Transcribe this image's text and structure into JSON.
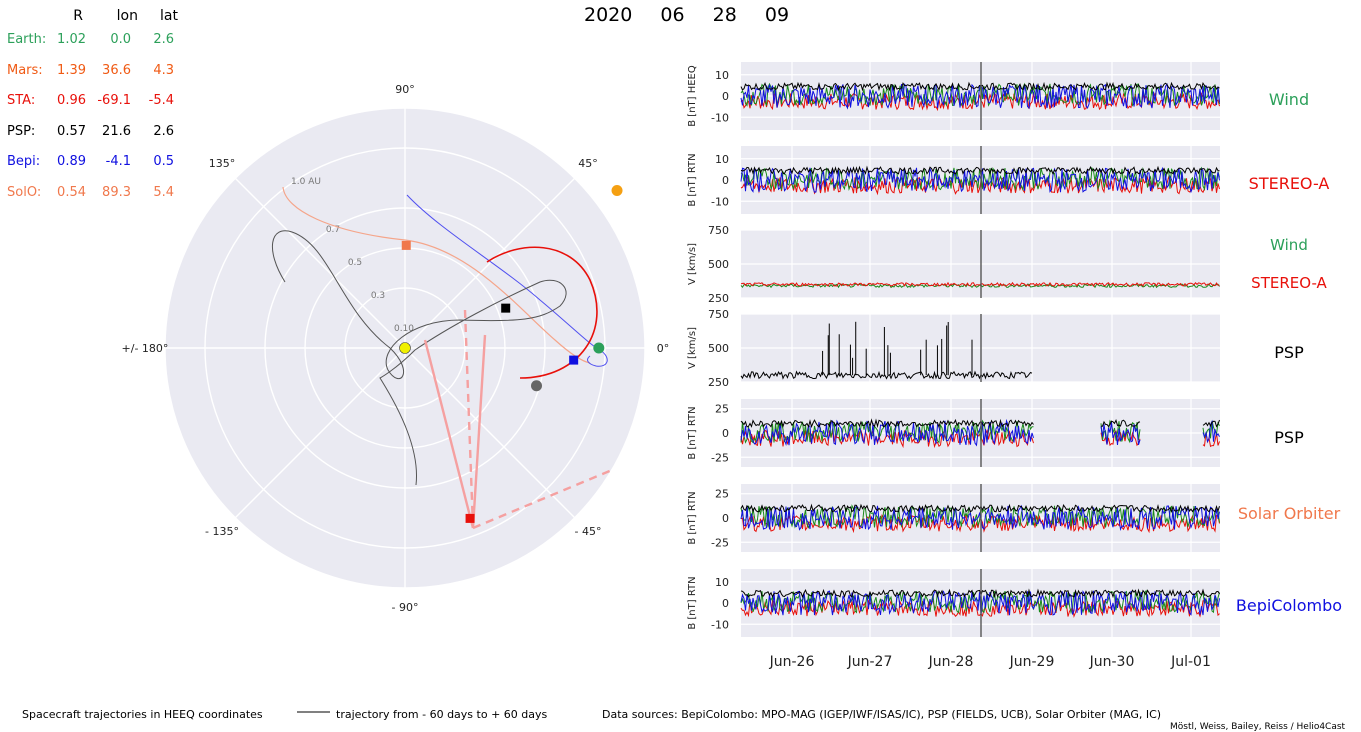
{
  "header": {
    "datetime": [
      "2020",
      "06",
      "28",
      "09"
    ]
  },
  "positions_table": {
    "columns": [
      "R",
      "lon",
      "lat"
    ],
    "rows": [
      {
        "name": "Earth:",
        "R": "1.02",
        "lon": "0.0",
        "lat": "2.6",
        "color": "#2ca05a"
      },
      {
        "name": "Mars:",
        "R": "1.39",
        "lon": "36.6",
        "lat": "4.3",
        "color": "#f05a14"
      },
      {
        "name": "STA:",
        "R": "0.96",
        "lon": "-69.1",
        "lat": "-5.4",
        "color": "#e8100a"
      },
      {
        "name": "PSP:",
        "R": "0.57",
        "lon": "21.6",
        "lat": "2.6",
        "color": "#000000"
      },
      {
        "name": "Bepi:",
        "R": "0.89",
        "lon": "-4.1",
        "lat": "0.5",
        "color": "#1010e0"
      },
      {
        "name": "SolO:",
        "R": "0.54",
        "lon": "89.3",
        "lat": "5.4",
        "color": "#f0784c"
      }
    ]
  },
  "polar": {
    "angle_labels": [
      "90°",
      "45°",
      "0°",
      "- 45°",
      "- 90°",
      "- 135°",
      "+/- 180°",
      "135°"
    ],
    "radial_labels": [
      "1.0 AU",
      "0.7",
      "0.5",
      "0.3",
      "0.10"
    ],
    "bodies": [
      {
        "name": "Sun",
        "R": 0.0,
        "lon": 0.0,
        "color": "#f0f000",
        "marker": "circle"
      },
      {
        "name": "Earth",
        "R": 1.02,
        "lon": 0.0,
        "color": "#2ca05a",
        "marker": "circle"
      },
      {
        "name": "Mars",
        "R": 1.39,
        "lon": 36.6,
        "color": "#f5a012",
        "marker": "circle"
      },
      {
        "name": "STA",
        "R": 0.96,
        "lon": -69.1,
        "color": "#e8100a",
        "marker": "square"
      },
      {
        "name": "PSP",
        "R": 0.57,
        "lon": 21.6,
        "color": "#000000",
        "marker": "square"
      },
      {
        "name": "Bepi",
        "R": 0.89,
        "lon": -4.1,
        "color": "#1010e0",
        "marker": "square"
      },
      {
        "name": "SolO",
        "R": 0.54,
        "lon": 89.3,
        "color": "#f0784c",
        "marker": "square"
      },
      {
        "name": "Venus",
        "R": 0.72,
        "lon": -16.0,
        "color": "#666666",
        "marker": "circle"
      }
    ]
  },
  "chart_data": [
    {
      "type": "line",
      "ylabel": "B [nT] HEEQ",
      "yticks": [
        10,
        0,
        -10
      ],
      "ylim": [
        -16,
        16
      ],
      "label": "Wind",
      "label_color": "#2ca05a"
    },
    {
      "type": "line",
      "ylabel": "B [nT] RTN",
      "yticks": [
        10,
        0,
        -10
      ],
      "ylim": [
        -16,
        16
      ],
      "label": "STEREO-A",
      "label_color": "#e8100a"
    },
    {
      "type": "line",
      "ylabel": "V [km/s]",
      "yticks": [
        750,
        500,
        250
      ],
      "ylim": [
        250,
        750
      ],
      "labels": [
        {
          "text": "Wind",
          "color": "#2ca05a"
        },
        {
          "text": "STEREO-A",
          "color": "#e8100a"
        }
      ]
    },
    {
      "type": "line",
      "ylabel": "V [km/s]",
      "yticks": [
        750,
        500,
        250
      ],
      "ylim": [
        250,
        750
      ],
      "label": "PSP",
      "label_color": "#000000"
    },
    {
      "type": "line",
      "ylabel": "B [nT] RTN",
      "yticks": [
        25,
        0,
        -25
      ],
      "ylim": [
        -35,
        35
      ],
      "label": "PSP",
      "label_color": "#000000"
    },
    {
      "type": "line",
      "ylabel": "B [nT] RTN",
      "yticks": [
        25,
        0,
        -25
      ],
      "ylim": [
        -35,
        35
      ],
      "label": "Solar Orbiter",
      "label_color": "#f0784c"
    },
    {
      "type": "line",
      "ylabel": "B [nT] RTN",
      "yticks": [
        10,
        0,
        -10
      ],
      "ylim": [
        -16,
        16
      ],
      "label": "BepiColombo",
      "label_color": "#1010e0"
    }
  ],
  "time_axis": {
    "ticks": [
      "Jun-26",
      "Jun-27",
      "Jun-28",
      "Jun-29",
      "Jun-30",
      "Jul-01"
    ]
  },
  "footer": {
    "caption_left": "Spacecraft trajectories in HEEQ coordinates",
    "legend_text": "trajectory from - 60 days to + 60 days",
    "sources": "Data sources: BepiColombo: MPO-MAG (IGEP/IWF/ISAS/IC), PSP (FIELDS, UCB), Solar Orbiter (MAG, IC)",
    "credit": "Möstl, Weiss, Bailey, Reiss / Helio4Cast"
  }
}
